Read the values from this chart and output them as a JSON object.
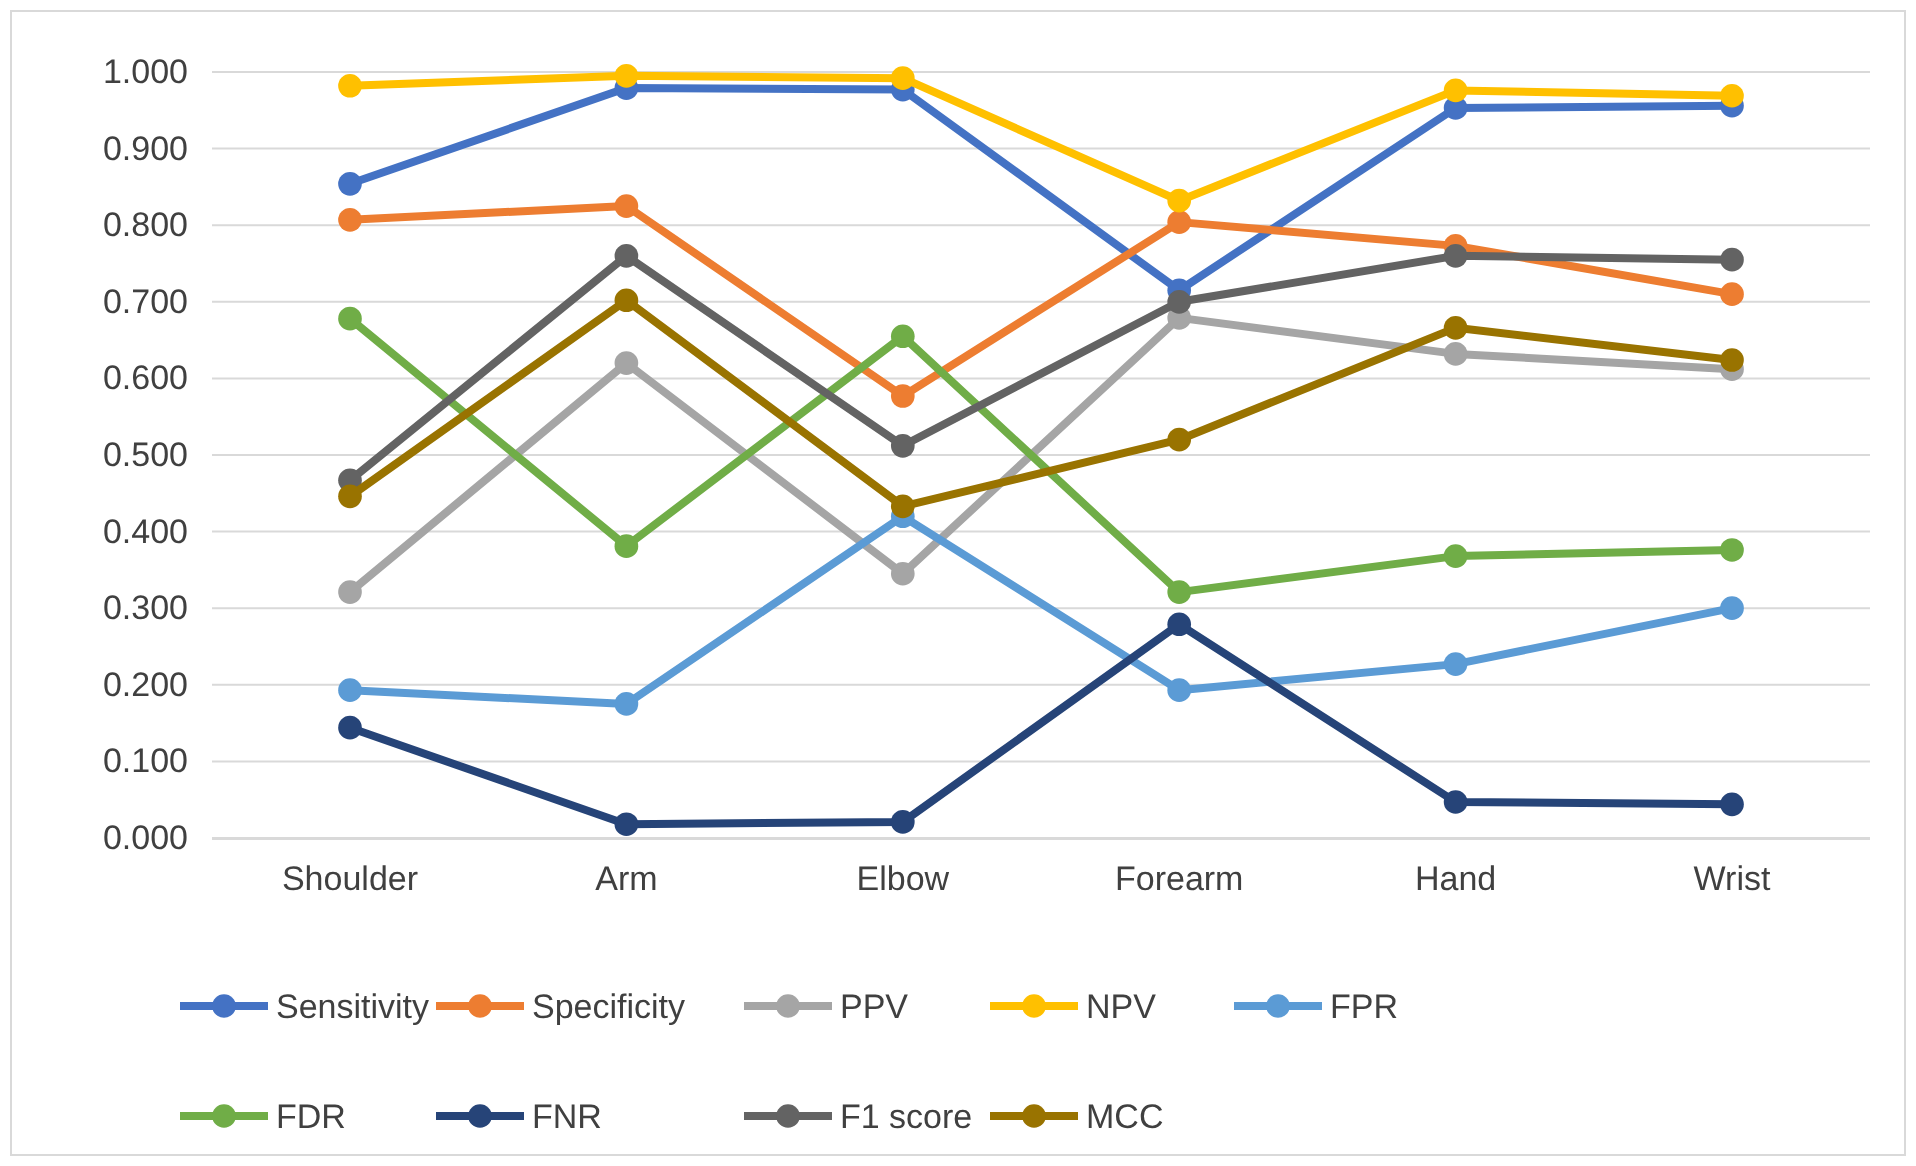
{
  "chart_data": {
    "type": "line",
    "categories": [
      "Shoulder",
      "Arm",
      "Elbow",
      "Forearm",
      "Hand",
      "Wrist"
    ],
    "series": [
      {
        "name": "Sensitivity",
        "color": "#4472c4",
        "values": [
          0.854,
          0.979,
          0.977,
          0.715,
          0.953,
          0.956
        ]
      },
      {
        "name": "Specificity",
        "color": "#ed7d31",
        "values": [
          0.807,
          0.825,
          0.577,
          0.804,
          0.773,
          0.71
        ]
      },
      {
        "name": "PPV",
        "color": "#a5a5a5",
        "values": [
          0.321,
          0.62,
          0.345,
          0.679,
          0.632,
          0.612
        ]
      },
      {
        "name": "NPV",
        "color": "#ffc000",
        "values": [
          0.982,
          0.995,
          0.992,
          0.832,
          0.976,
          0.969
        ]
      },
      {
        "name": "FPR",
        "color": "#5b9bd5",
        "values": [
          0.193,
          0.175,
          0.42,
          0.193,
          0.227,
          0.3
        ]
      },
      {
        "name": "FDR",
        "color": "#70ad47",
        "values": [
          0.678,
          0.381,
          0.655,
          0.321,
          0.368,
          0.376
        ]
      },
      {
        "name": "FNR",
        "color": "#264478",
        "values": [
          0.144,
          0.018,
          0.021,
          0.279,
          0.047,
          0.044
        ]
      },
      {
        "name": "F1 score",
        "color": "#636363",
        "values": [
          0.467,
          0.76,
          0.512,
          0.7,
          0.76,
          0.755
        ]
      },
      {
        "name": "MCC",
        "color": "#997300",
        "values": [
          0.446,
          0.702,
          0.433,
          0.52,
          0.666,
          0.624
        ]
      }
    ],
    "ylim": [
      0,
      1
    ],
    "yticks": [
      {
        "value": 0,
        "label": "0.000"
      },
      {
        "value": 0.1,
        "label": "0.100"
      },
      {
        "value": 0.2,
        "label": "0.200"
      },
      {
        "value": 0.3,
        "label": "0.300"
      },
      {
        "value": 0.4,
        "label": "0.400"
      },
      {
        "value": 0.5,
        "label": "0.500"
      },
      {
        "value": 0.6,
        "label": "0.600"
      },
      {
        "value": 0.7,
        "label": "0.700"
      },
      {
        "value": 0.8,
        "label": "0.800"
      },
      {
        "value": 0.9,
        "label": "0.900"
      },
      {
        "value": 1,
        "label": "1.000"
      }
    ],
    "grid": "y",
    "legend": "bottom",
    "marker": "circle",
    "line_style": "solid"
  }
}
